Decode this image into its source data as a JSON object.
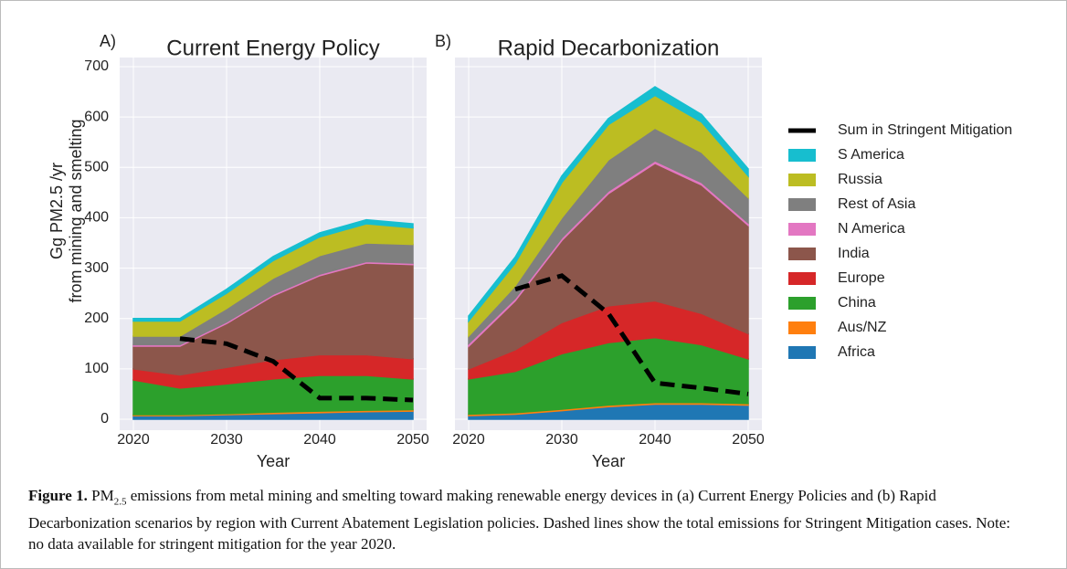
{
  "chart_data": [
    {
      "type": "stacked-area",
      "panel": "A)",
      "title": "Current Energy Policy",
      "ylabel": [
        "Gg PM2.5 /yr",
        "from mining and smelting"
      ],
      "xlabel": "Year",
      "x": [
        2020,
        2025,
        2030,
        2035,
        2040,
        2045,
        2050
      ],
      "xlim": [
        2020,
        2050
      ],
      "xticks": [
        2020,
        2030,
        2040,
        2050
      ],
      "ylim": [
        0,
        700
      ],
      "yticks": [
        0,
        100,
        200,
        300,
        400,
        500,
        600,
        700
      ],
      "grid": true,
      "series": [
        {
          "name": "Africa",
          "color": "#1f77b4",
          "values": [
            7,
            7,
            9,
            11,
            13,
            15,
            16
          ]
        },
        {
          "name": "Aus/NZ",
          "color": "#ff7f0e",
          "values": [
            2,
            2,
            2,
            3,
            3,
            3,
            3
          ]
        },
        {
          "name": "China",
          "color": "#2ca02c",
          "values": [
            69,
            53,
            59,
            66,
            71,
            69,
            61
          ]
        },
        {
          "name": "Europe",
          "color": "#d62728",
          "values": [
            22,
            26,
            33,
            38,
            41,
            41,
            40
          ]
        },
        {
          "name": "India",
          "color": "#8c564b",
          "values": [
            45,
            57,
            87,
            127,
            157,
            182,
            187
          ]
        },
        {
          "name": "N America",
          "color": "#e377c2",
          "values": [
            3,
            3,
            3,
            3,
            3,
            3,
            3
          ]
        },
        {
          "name": "Rest of Asia",
          "color": "#7f7f7f",
          "values": [
            17,
            17,
            27,
            32,
            37,
            37,
            37
          ]
        },
        {
          "name": "Russia",
          "color": "#bcbd22",
          "values": [
            30,
            30,
            30,
            35,
            37,
            38,
            33
          ]
        },
        {
          "name": "S America",
          "color": "#17becf",
          "values": [
            5,
            5,
            8,
            8,
            8,
            8,
            8
          ]
        },
        {
          "name": "Sum in Stringent Mitigation",
          "color": "#000000",
          "linestyle": "dashed",
          "values": [
            null,
            160,
            150,
            115,
            42,
            42,
            38
          ]
        }
      ]
    },
    {
      "type": "stacked-area",
      "panel": "B)",
      "title": "Rapid Decarbonization",
      "xlabel": "Year",
      "x": [
        2020,
        2025,
        2030,
        2035,
        2040,
        2045,
        2050
      ],
      "xlim": [
        2020,
        2050
      ],
      "xticks": [
        2020,
        2030,
        2040,
        2050
      ],
      "series": [
        {
          "values": [
            7,
            10,
            17,
            25,
            30,
            30,
            28
          ]
        },
        {
          "values": [
            3,
            3,
            3,
            3,
            3,
            3,
            3
          ]
        },
        {
          "values": [
            70,
            82,
            110,
            124,
            129,
            115,
            89
          ]
        },
        {
          "values": [
            20,
            43,
            62,
            73,
            73,
            62,
            50
          ]
        },
        {
          "values": [
            45,
            97,
            163,
            223,
            273,
            255,
            215
          ]
        },
        {
          "values": [
            5,
            5,
            5,
            5,
            5,
            5,
            5
          ]
        },
        {
          "values": [
            15,
            25,
            40,
            62,
            65,
            60,
            50
          ]
        },
        {
          "values": [
            30,
            45,
            70,
            70,
            65,
            60,
            43
          ]
        },
        {
          "values": [
            10,
            12,
            13,
            12,
            17,
            15,
            14
          ]
        },
        {
          "values": [
            null,
            258,
            285,
            210,
            72,
            62,
            50
          ]
        }
      ]
    }
  ],
  "caption": {
    "label": "Figure 1.",
    "text": [
      "PM",
      "2.5",
      " emissions from metal mining and smelting toward making renewable energy devices in (a) Current Energy Policies and (b) Rapid Decarbonization scenarios by region with Current Abatement Legislation policies. Dashed lines show the total emissions for Stringent Mitigation cases. Note: no data available for stringent mitigation for the year 2020."
    ]
  }
}
